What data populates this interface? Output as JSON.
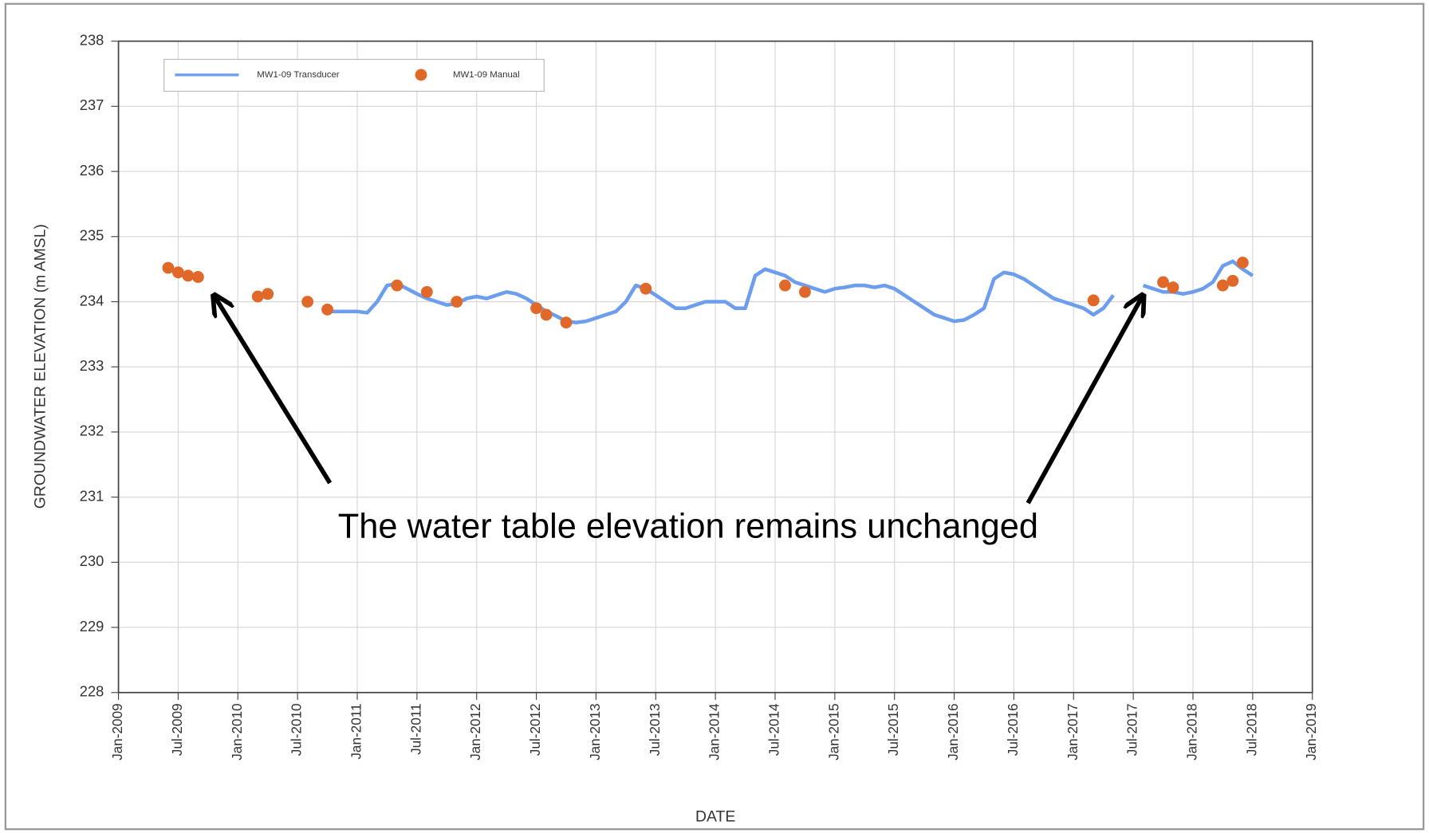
{
  "chart_data": {
    "type": "line",
    "xlabel": "DATE",
    "ylabel": "GROUNDWATER ELEVATION (m AMSL)",
    "annotation": "The water table elevation remains unchanged",
    "xlim": [
      "2009-01",
      "2019-01"
    ],
    "xticks": [
      {
        "value": "2009-01",
        "label": "Jan-2009"
      },
      {
        "value": "2009-07",
        "label": "Jul-2009"
      },
      {
        "value": "2010-01",
        "label": "Jan-2010"
      },
      {
        "value": "2010-07",
        "label": "Jul-2010"
      },
      {
        "value": "2011-01",
        "label": "Jan-2011"
      },
      {
        "value": "2011-07",
        "label": "Jul-2011"
      },
      {
        "value": "2012-01",
        "label": "Jan-2012"
      },
      {
        "value": "2012-07",
        "label": "Jul-2012"
      },
      {
        "value": "2013-01",
        "label": "Jan-2013"
      },
      {
        "value": "2013-07",
        "label": "Jul-2013"
      },
      {
        "value": "2014-01",
        "label": "Jan-2014"
      },
      {
        "value": "2014-07",
        "label": "Jul-2014"
      },
      {
        "value": "2015-01",
        "label": "Jan-2015"
      },
      {
        "value": "2015-07",
        "label": "Jul-2015"
      },
      {
        "value": "2016-01",
        "label": "Jan-2016"
      },
      {
        "value": "2016-07",
        "label": "Jul-2016"
      },
      {
        "value": "2017-01",
        "label": "Jan-2017"
      },
      {
        "value": "2017-07",
        "label": "Jul-2017"
      },
      {
        "value": "2018-01",
        "label": "Jan-2018"
      },
      {
        "value": "2018-07",
        "label": "Jul-2018"
      },
      {
        "value": "2019-01",
        "label": "Jan-2019"
      }
    ],
    "ylim": [
      228,
      238
    ],
    "yticks": [
      228,
      229,
      230,
      231,
      232,
      233,
      234,
      235,
      236,
      237,
      238
    ],
    "grid": true,
    "legend": "upper left",
    "series": [
      {
        "name": "MW1-09 Transducer",
        "kind": "line",
        "color": "#6d9ded",
        "x": [
          "2010-10",
          "2010-11",
          "2010-12",
          "2011-01",
          "2011-02",
          "2011-03",
          "2011-04",
          "2011-05",
          "2011-06",
          "2011-07",
          "2011-08",
          "2011-09",
          "2011-10",
          "2011-11",
          "2011-12",
          "2012-01",
          "2012-02",
          "2012-03",
          "2012-04",
          "2012-05",
          "2012-06",
          "2012-07",
          "2012-08",
          "2012-09",
          "2012-10",
          "2012-11",
          "2012-12",
          "2013-01",
          "2013-02",
          "2013-03",
          "2013-04",
          "2013-05",
          "2013-06",
          "2013-07",
          "2013-08",
          "2013-09",
          "2013-10",
          "2013-11",
          "2013-12",
          "2014-01",
          "2014-02",
          "2014-03",
          "2014-04",
          "2014-05",
          "2014-06",
          "2014-07",
          "2014-08",
          "2014-09",
          "2014-10",
          "2014-11",
          "2014-12",
          "2015-01",
          "2015-02",
          "2015-03",
          "2015-04",
          "2015-05",
          "2015-06",
          "2015-07",
          "2015-08",
          "2015-09",
          "2015-10",
          "2015-11",
          "2015-12",
          "2016-01",
          "2016-02",
          "2016-03",
          "2016-04",
          "2016-05",
          "2016-06",
          "2016-07",
          "2016-08",
          "2016-09",
          "2016-10",
          "2016-11",
          "2016-12",
          "2017-01",
          "2017-02",
          "2017-03",
          "2017-04",
          "2017-05",
          "2017-06",
          "2017-07",
          "2017-08",
          "2017-09",
          "2017-10",
          "2017-11",
          "2017-12",
          "2018-01",
          "2018-02",
          "2018-03",
          "2018-04",
          "2018-05",
          "2018-06",
          "2018-07"
        ],
        "values": [
          233.85,
          233.85,
          233.85,
          233.85,
          233.83,
          234.0,
          234.25,
          234.28,
          234.2,
          234.12,
          234.05,
          234.0,
          233.95,
          233.97,
          234.05,
          234.08,
          234.05,
          234.1,
          234.15,
          234.12,
          234.05,
          233.95,
          233.85,
          233.78,
          233.7,
          233.68,
          233.7,
          233.75,
          233.8,
          233.85,
          234.0,
          234.25,
          234.2,
          234.1,
          234.0,
          233.9,
          233.9,
          233.95,
          234.0,
          234.0,
          234.0,
          233.9,
          233.9,
          234.4,
          234.5,
          234.45,
          234.4,
          234.3,
          234.25,
          234.2,
          234.15,
          234.2,
          234.22,
          234.25,
          234.25,
          234.22,
          234.25,
          234.2,
          234.1,
          234.0,
          233.9,
          233.8,
          233.75,
          233.7,
          233.72,
          233.8,
          233.9,
          234.35,
          234.45,
          234.42,
          234.35,
          234.25,
          234.15,
          234.05,
          234.0,
          233.95,
          233.9,
          233.8,
          233.9,
          234.1,
          null,
          null,
          234.25,
          234.2,
          234.15,
          234.15,
          234.12,
          234.15,
          234.2,
          234.3,
          234.55,
          234.62,
          234.5,
          234.4
        ]
      },
      {
        "name": "MW1-09 Manual",
        "kind": "scatter",
        "color": "#e0692a",
        "x": [
          "2009-06",
          "2009-07",
          "2009-08",
          "2009-09",
          "2010-03",
          "2010-04",
          "2010-08",
          "2010-10",
          "2011-05",
          "2011-08",
          "2011-11",
          "2012-07",
          "2012-08",
          "2012-10",
          "2013-06",
          "2014-08",
          "2014-10",
          "2017-03",
          "2017-10",
          "2017-11",
          "2018-04",
          "2018-05",
          "2018-06"
        ],
        "values": [
          234.52,
          234.45,
          234.4,
          234.38,
          234.08,
          234.12,
          234.0,
          233.88,
          234.25,
          234.15,
          234.0,
          233.9,
          233.8,
          233.68,
          234.2,
          234.25,
          234.15,
          234.02,
          234.3,
          234.22,
          234.25,
          234.32,
          234.6
        ]
      }
    ]
  }
}
